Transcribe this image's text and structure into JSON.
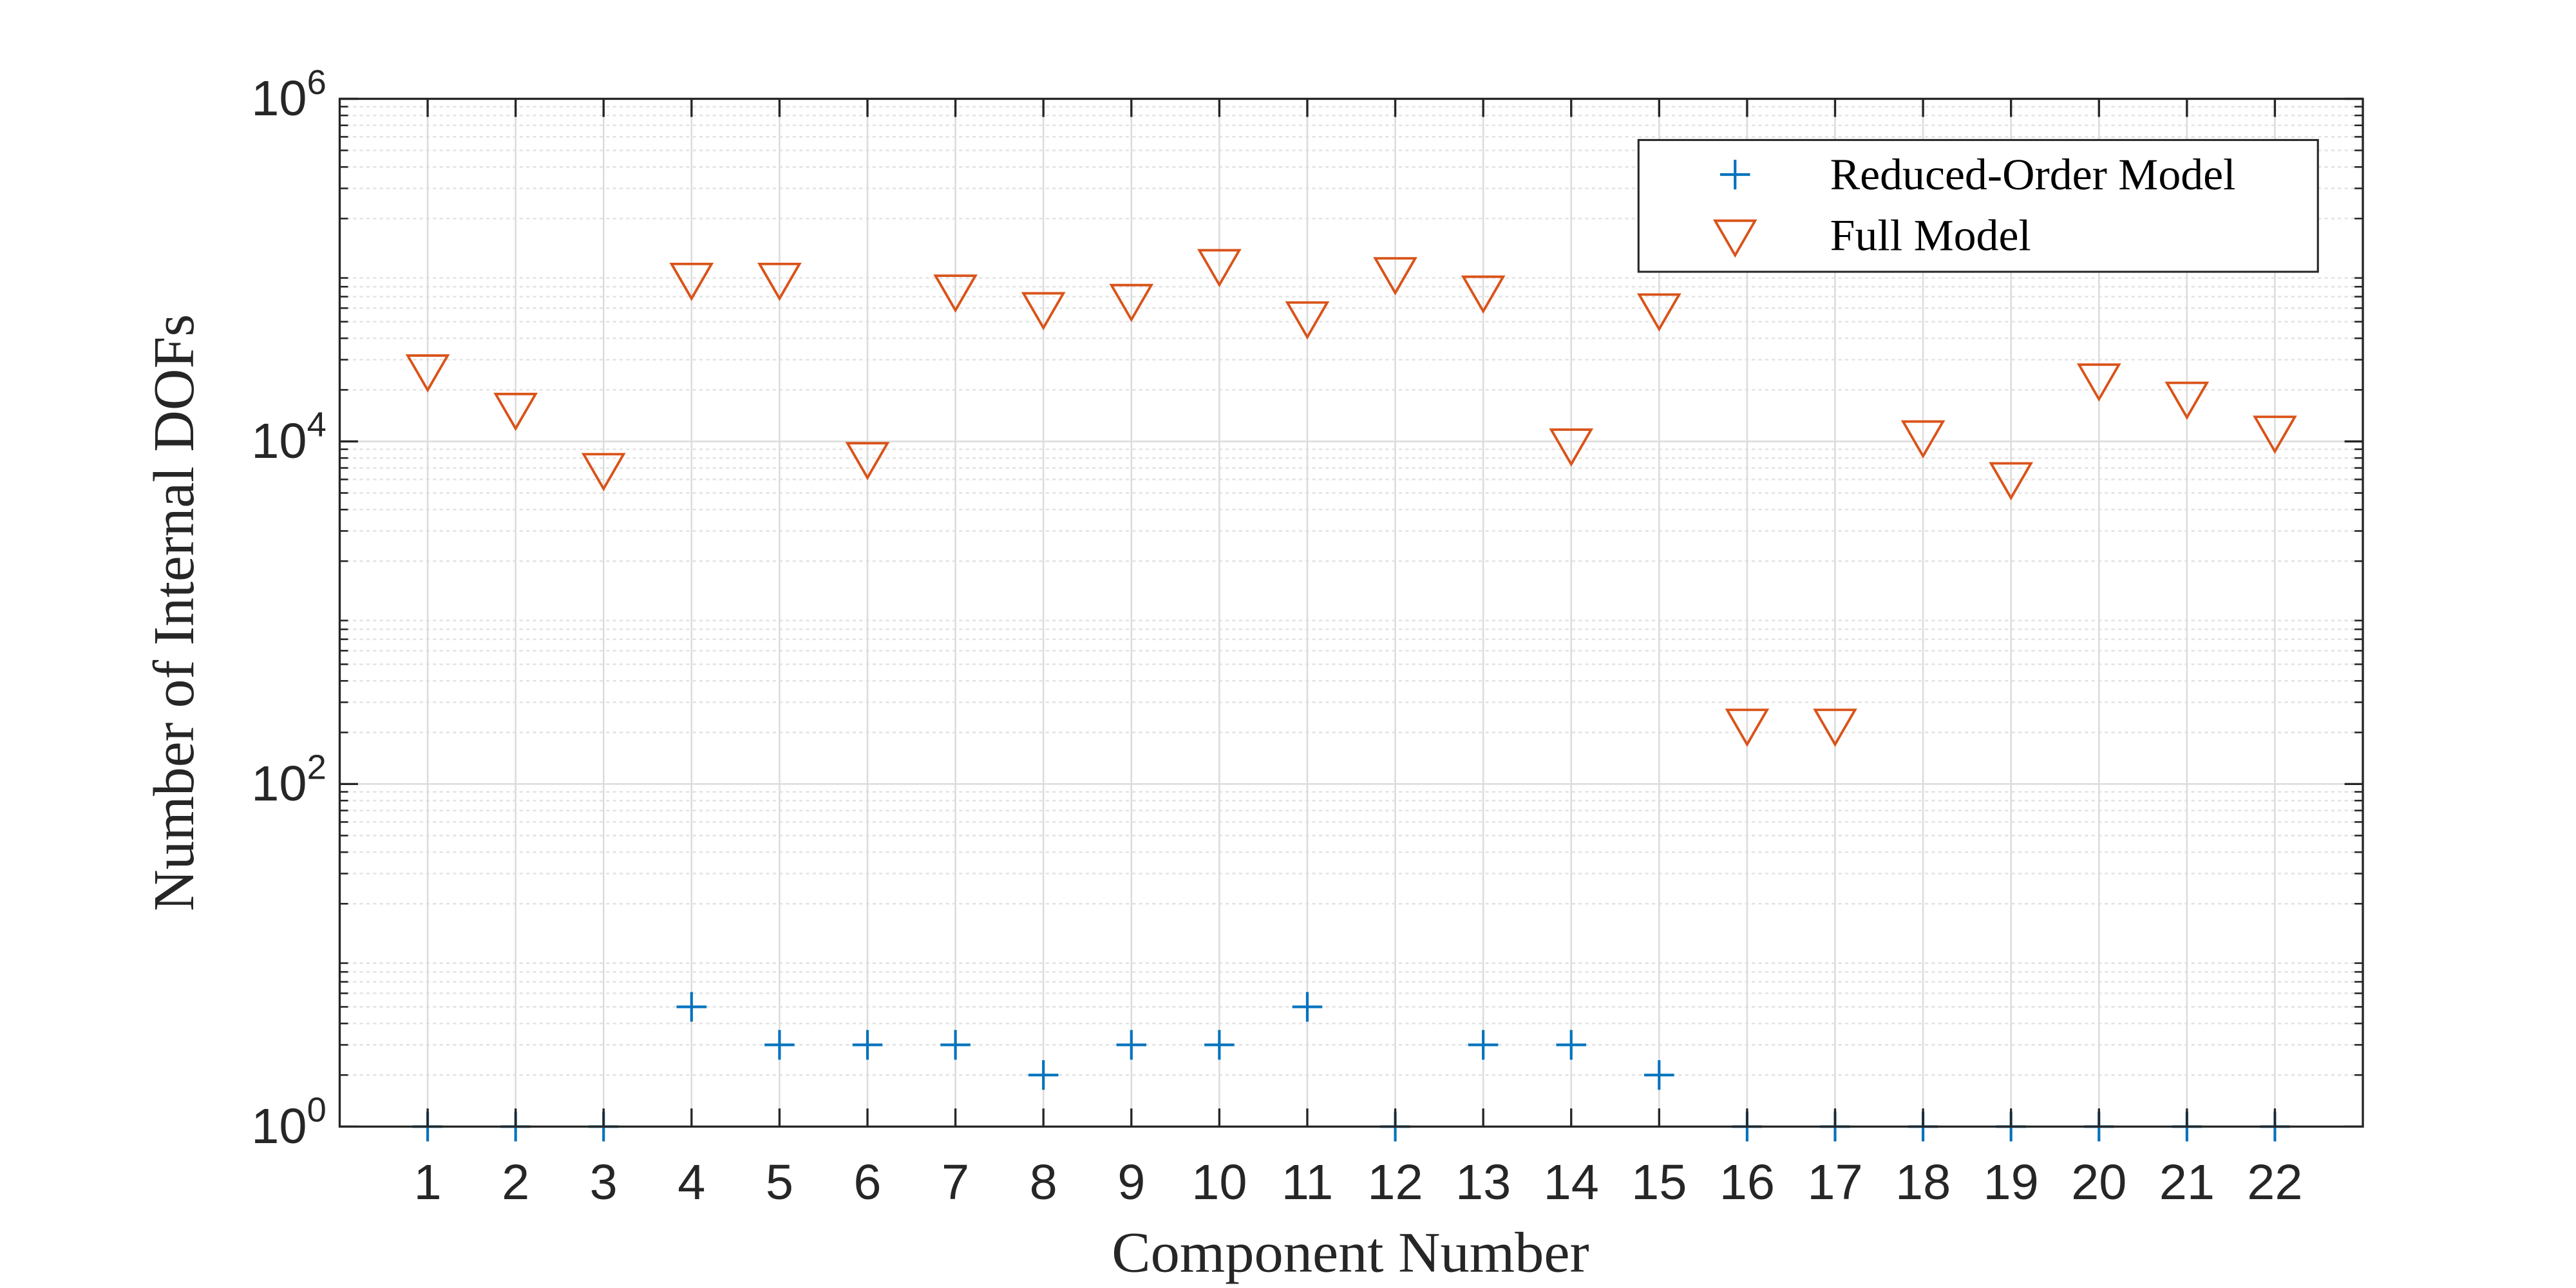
{
  "chart_data": {
    "type": "scatter",
    "xlabel": "Component Number",
    "ylabel": "Number of Internal DOFs",
    "x": [
      1,
      2,
      3,
      4,
      5,
      6,
      7,
      8,
      9,
      10,
      11,
      12,
      13,
      14,
      15,
      16,
      17,
      18,
      19,
      20,
      21,
      22
    ],
    "series": [
      {
        "name": "Reduced-Order Model",
        "color": "#0072bd",
        "marker": "plus",
        "values": [
          1,
          1,
          1,
          5,
          3,
          3,
          3,
          2,
          3,
          3,
          5,
          1,
          3,
          3,
          2,
          1,
          1,
          1,
          1,
          1,
          1,
          1
        ]
      },
      {
        "name": "Full Model",
        "color": "#d95319",
        "marker": "triangle-down",
        "values": [
          26000,
          15500,
          6900,
          89000,
          89000,
          8000,
          76000,
          60000,
          67000,
          107000,
          53000,
          96000,
          75000,
          9600,
          59000,
          222,
          222,
          10700,
          6100,
          23000,
          18000,
          11400
        ]
      }
    ],
    "xlim": [
      0,
      23
    ],
    "xticks": [
      1,
      2,
      3,
      4,
      5,
      6,
      7,
      8,
      9,
      10,
      11,
      12,
      13,
      14,
      15,
      16,
      17,
      18,
      19,
      20,
      21,
      22
    ],
    "ylim": [
      1,
      1000000
    ],
    "yticks": [
      {
        "value": 1,
        "label": "10^0"
      },
      {
        "value": 100,
        "label": "10^2"
      },
      {
        "value": 10000,
        "label": "10^4"
      },
      {
        "value": 1000000,
        "label": "10^6"
      }
    ],
    "log_y": true,
    "grid": true,
    "minor_grid": true,
    "legend": "northeast"
  }
}
